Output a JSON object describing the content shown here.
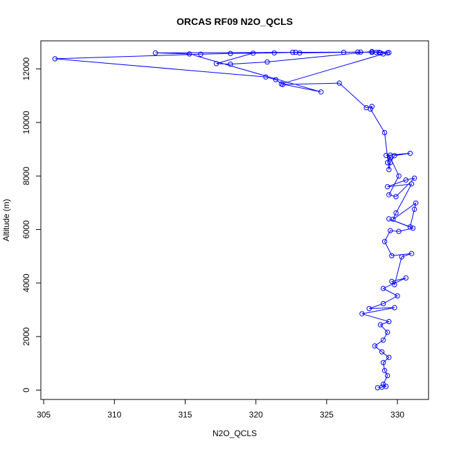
{
  "colors": {
    "series": "#0000ff",
    "axis": "#000000",
    "background": "#ffffff"
  },
  "chart_data": {
    "type": "scatter",
    "title": "ORCAS RF09 N2O_QCLS",
    "xlabel": "N2O_QCLS",
    "ylabel": "Altitude (m)",
    "xlim": [
      304.8,
      332.2
    ],
    "ylim": [
      -350,
      13050
    ],
    "xticks": [
      305,
      310,
      315,
      320,
      325,
      330
    ],
    "yticks": [
      0,
      2000,
      4000,
      6000,
      8000,
      10000,
      12000
    ],
    "grid": false,
    "legend": "none",
    "series": [
      {
        "style": "line+points",
        "x": [
          328.6,
          328.9,
          329.2,
          329.0,
          329.3,
          329.1,
          329.0,
          329.4,
          328.9,
          328.4,
          329.0,
          329.3,
          328.8,
          329.4,
          327.5,
          329.8,
          328.0,
          329.0,
          330.0,
          329.0,
          330.6,
          329.6,
          329.8,
          330.3,
          331.0,
          329.6,
          329.1,
          329.5,
          330.1,
          331.1,
          329.4,
          330.9,
          331.2,
          331.3,
          329.7,
          329.9,
          331.0,
          329.3,
          330.6,
          331.2,
          329.9,
          329.4,
          330.1,
          329.5,
          329.3,
          329.5,
          329.2,
          330.9,
          329.8,
          329.5,
          329.4,
          329.1,
          328.1,
          328.2,
          327.8,
          325.9,
          321.9,
          321.4,
          320.7,
          305.8,
          316.1,
          318.2,
          321.3,
          322.8,
          323.1,
          326.2,
          327.4,
          328.2,
          328.7,
          329.3,
          328.2,
          320.8,
          318.2,
          317.2,
          319.8,
          322.6,
          327.2,
          312.9,
          315.3,
          324.6,
          321.8,
          329.0,
          329.4,
          328.5,
          328.8
        ]
      }
    ],
    "y_series_values": [
      90,
      110,
      140,
      220,
      540,
      730,
      1030,
      1220,
      1430,
      1650,
      1870,
      2160,
      2440,
      2560,
      2850,
      3080,
      3050,
      3230,
      3520,
      3800,
      4190,
      4060,
      3940,
      4980,
      5100,
      5020,
      5550,
      5960,
      5930,
      6050,
      6400,
      6100,
      6760,
      6990,
      6380,
      6620,
      7700,
      7600,
      7850,
      7920,
      7230,
      7300,
      8000,
      8700,
      8500,
      8780,
      8770,
      8850,
      8760,
      8500,
      8240,
      9620,
      10500,
      10600,
      10550,
      11470,
      11420,
      11600,
      11700,
      12380,
      12550,
      12580,
      12600,
      12620,
      12600,
      12620,
      12630,
      12620,
      12620,
      12600,
      12650,
      12260,
      12180,
      12200,
      12590,
      12620,
      12630,
      12600,
      12560,
      11140,
      11440,
      12560,
      12610,
      12620,
      12600
    ]
  }
}
